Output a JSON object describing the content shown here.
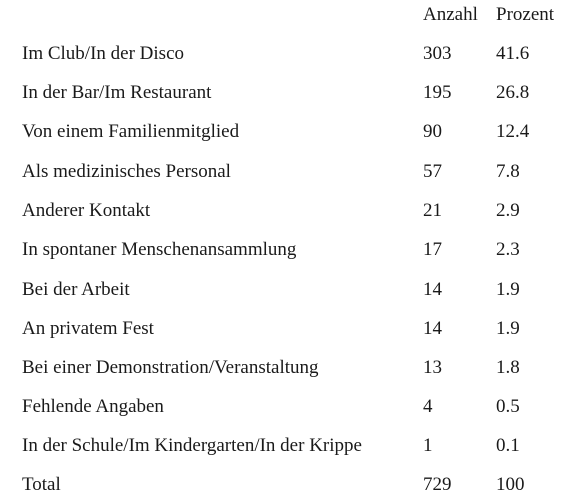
{
  "table": {
    "headers": {
      "count": "Anzahl",
      "percent": "Prozent"
    },
    "rows": [
      {
        "label": "Im Club/In der Disco",
        "count": "303",
        "percent": "41.6"
      },
      {
        "label": "In der Bar/Im Restaurant",
        "count": "195",
        "percent": "26.8"
      },
      {
        "label": "Von einem Familienmitglied",
        "count": "90",
        "percent": "12.4"
      },
      {
        "label": "Als medizinisches Personal",
        "count": "57",
        "percent": "7.8"
      },
      {
        "label": "Anderer Kontakt",
        "count": "21",
        "percent": "2.9"
      },
      {
        "label": "In spontaner Menschenansammlung",
        "count": "17",
        "percent": "2.3"
      },
      {
        "label": "Bei der Arbeit",
        "count": "14",
        "percent": "1.9"
      },
      {
        "label": "An privatem Fest",
        "count": "14",
        "percent": "1.9"
      },
      {
        "label": "Bei einer Demonstration/Veranstaltung",
        "count": "13",
        "percent": "1.8"
      },
      {
        "label": "Fehlende Angaben",
        "count": "4",
        "percent": "0.5"
      },
      {
        "label": "In der Schule/Im Kindergarten/In der Krippe",
        "count": "1",
        "percent": "0.1"
      },
      {
        "label": "Total",
        "count": "729",
        "percent": "100"
      }
    ]
  }
}
